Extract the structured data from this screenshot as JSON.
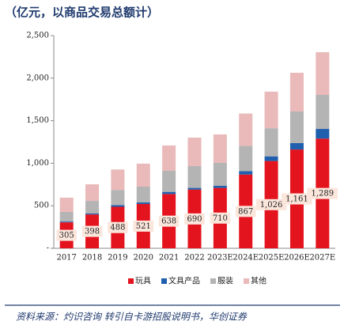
{
  "chart_data": {
    "type": "stacked_bar",
    "title": "（亿元，以商品交易总额计）",
    "source": "资料来源：灼识咨询 转引自卡游招股说明书，华创证券",
    "categories": [
      "2017",
      "2018",
      "2019",
      "2020",
      "2021",
      "2022",
      "2023E",
      "2024E",
      "2025E",
      "2026E",
      "2027E"
    ],
    "series": [
      {
        "name": "玩具",
        "color": "#e4141f",
        "values": [
          305,
          398,
          488,
          521,
          638,
          690,
          710,
          867,
          1026,
          1161,
          1289
        ],
        "value_labels": [
          "305",
          "398",
          "488",
          "521",
          "638",
          "690",
          "710",
          "867",
          "1,026",
          "1,161",
          "1,289"
        ]
      },
      {
        "name": "文具产品",
        "color": "#1f5fae",
        "values": [
          10,
          11,
          20,
          18,
          25,
          20,
          25,
          40,
          55,
          75,
          114
        ]
      },
      {
        "name": "服装",
        "color": "#b4b4b4",
        "values": [
          113,
          148,
          177,
          186,
          248,
          257,
          269,
          296,
          330,
          372,
          400
        ]
      },
      {
        "name": "其他",
        "color": "#eab9b9",
        "values": [
          167,
          195,
          241,
          270,
          297,
          334,
          334,
          381,
          430,
          455,
          502
        ]
      }
    ],
    "ylim": [
      0,
      2500
    ],
    "yticks": [
      {
        "value": 0,
        "label": "-"
      },
      500,
      {
        "value": 1000,
        "label": "1,000"
      },
      {
        "value": 1500,
        "label": "1,500"
      },
      {
        "value": 2000,
        "label": "2,000"
      },
      {
        "value": 2500,
        "label": "2,500"
      }
    ],
    "legend": "bottom"
  }
}
